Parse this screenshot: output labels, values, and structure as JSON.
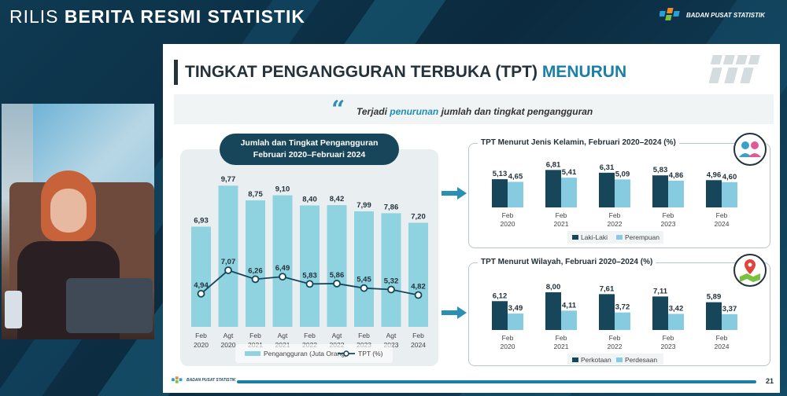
{
  "banner": {
    "prefix": "RILIS ",
    "bold": "BERITA RESMI STATISTIK"
  },
  "brand": {
    "name": "BADAN PUSAT STATISTIK"
  },
  "slide": {
    "title_main": "TINGKAT PENGANGGURAN TERBUKA (TPT) ",
    "title_highlight": "MENURUN",
    "quote_prefix": "Terjadi ",
    "quote_emph": "penurunan",
    "quote_suffix": " jumlah dan tingkat pengangguran",
    "page_number": "21",
    "footer_brand": "BADAN PUSAT STATISTIK"
  },
  "colors": {
    "navy": "#17465a",
    "teal": "#86d0df",
    "bar_light": "#8fd3e1",
    "accent": "#1d7fa6"
  },
  "chart_data": [
    {
      "type": "bar+line",
      "title_line1": "Jumlah dan Tingkat Pengangguran",
      "title_line2": "Februari 2020–Februari 2024",
      "categories": [
        [
          "Feb",
          "2020"
        ],
        [
          "Agt",
          "2020"
        ],
        [
          "Feb",
          "2021"
        ],
        [
          "Agt",
          "2021"
        ],
        [
          "Feb",
          "2022"
        ],
        [
          "Agt",
          "2022"
        ],
        [
          "Feb",
          "2023"
        ],
        [
          "Agt",
          "2023"
        ],
        [
          "Feb",
          "2024"
        ]
      ],
      "series": [
        {
          "name": "Pengangguran (Juta Orang)",
          "kind": "bar",
          "values": [
            6.93,
            9.77,
            8.75,
            9.1,
            8.4,
            8.42,
            7.99,
            7.86,
            7.2
          ]
        },
        {
          "name": "TPT (%)",
          "kind": "line",
          "values": [
            4.94,
            7.07,
            6.26,
            6.49,
            5.83,
            5.86,
            5.45,
            5.32,
            4.82
          ]
        }
      ],
      "labels_bar": [
        "6,93",
        "9,77",
        "8,75",
        "9,10",
        "8,40",
        "8,42",
        "7,99",
        "7,86",
        "7,20"
      ],
      "labels_line": [
        "4,94",
        "7,07",
        "6,26",
        "6,49",
        "5,83",
        "5,86",
        "5,45",
        "5,32",
        "4,82"
      ],
      "legend_position": "bottom"
    },
    {
      "type": "bar",
      "title": "TPT Menurut Jenis Kelamin, Februari 2020–2024 (%)",
      "categories": [
        [
          "Feb",
          "2020"
        ],
        [
          "Feb",
          "2021"
        ],
        [
          "Feb",
          "2022"
        ],
        [
          "Feb",
          "2023"
        ],
        [
          "Feb",
          "2024"
        ]
      ],
      "series": [
        {
          "name": "Laki-Laki",
          "values": [
            5.13,
            6.81,
            6.31,
            5.83,
            4.96
          ]
        },
        {
          "name": "Perempuan",
          "values": [
            4.65,
            5.41,
            5.09,
            4.86,
            4.6
          ]
        }
      ],
      "labels": [
        [
          "5,13",
          "6,81",
          "6,31",
          "5,83",
          "4,96"
        ],
        [
          "4,65",
          "5,41",
          "5,09",
          "4,86",
          "4,60"
        ]
      ],
      "legend_position": "bottom"
    },
    {
      "type": "bar",
      "title": "TPT Menurut Wilayah, Februari 2020–2024 (%)",
      "categories": [
        [
          "Feb",
          "2020"
        ],
        [
          "Feb",
          "2021"
        ],
        [
          "Feb",
          "2022"
        ],
        [
          "Feb",
          "2023"
        ],
        [
          "Feb",
          "2024"
        ]
      ],
      "series": [
        {
          "name": "Perkotaan",
          "values": [
            6.12,
            8.0,
            7.61,
            7.11,
            5.89
          ]
        },
        {
          "name": "Perdesaan",
          "values": [
            3.49,
            4.11,
            3.72,
            3.42,
            3.37
          ]
        }
      ],
      "labels": [
        [
          "6,12",
          "8,00",
          "7,61",
          "7,11",
          "5,89"
        ],
        [
          "3,49",
          "4,11",
          "3,72",
          "3,42",
          "3,37"
        ]
      ],
      "legend_position": "bottom"
    }
  ]
}
